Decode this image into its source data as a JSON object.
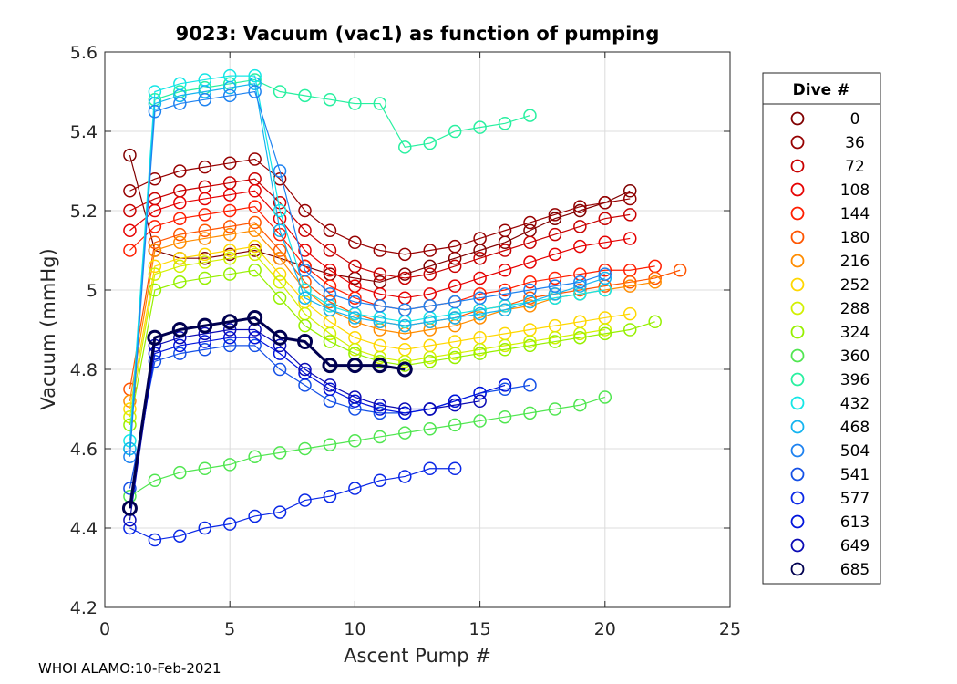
{
  "chart_data": {
    "type": "line",
    "title": "9023: Vacuum (vac1) as function of pumping",
    "xlabel": "Ascent Pump #",
    "ylabel": "Vacuum (mmHg)",
    "xlim": [
      0,
      25
    ],
    "ylim": [
      4.2,
      5.6
    ],
    "xticks": [
      0,
      5,
      10,
      15,
      20,
      25
    ],
    "xtick_labels": [
      "0",
      "5",
      "10",
      "15",
      "20",
      "25"
    ],
    "yticks": [
      4.2,
      4.4,
      4.6,
      4.8,
      5.0,
      5.2,
      5.4,
      5.6
    ],
    "ytick_labels": [
      "4.2",
      "4.4",
      "4.6",
      "4.8",
      "5",
      "5.2",
      "5.4",
      "5.6"
    ],
    "grid": true,
    "legend": {
      "title": "Dive #",
      "placement": "right-outside",
      "entries": [
        {
          "label": "0",
          "color": "#800000"
        },
        {
          "label": "36",
          "color": "#960000"
        },
        {
          "label": "72",
          "color": "#c80000"
        },
        {
          "label": "108",
          "color": "#e60000"
        },
        {
          "label": "144",
          "color": "#ff1e00"
        },
        {
          "label": "180",
          "color": "#ff5500"
        },
        {
          "label": "216",
          "color": "#ff8c00"
        },
        {
          "label": "252",
          "color": "#ffd700"
        },
        {
          "label": "288",
          "color": "#d2f000"
        },
        {
          "label": "324",
          "color": "#96f000"
        },
        {
          "label": "360",
          "color": "#50e650"
        },
        {
          "label": "396",
          "color": "#28f0a0"
        },
        {
          "label": "432",
          "color": "#14e6e6"
        },
        {
          "label": "468",
          "color": "#14b4f0"
        },
        {
          "label": "504",
          "color": "#1e82f0"
        },
        {
          "label": "541",
          "color": "#1450e6"
        },
        {
          "label": "577",
          "color": "#0a28e6"
        },
        {
          "label": "613",
          "color": "#0014dc"
        },
        {
          "label": "649",
          "color": "#0a0ab4"
        },
        {
          "label": "685",
          "color": "#000050"
        }
      ]
    },
    "series": [
      {
        "name": "0",
        "color": "#800000",
        "x": [
          1,
          2,
          3,
          4,
          5,
          6,
          7,
          8,
          9,
          10,
          11,
          12,
          13,
          14,
          15,
          16,
          17,
          18,
          19,
          20,
          21
        ],
        "y": [
          5.34,
          5.1,
          5.08,
          5.08,
          5.09,
          5.1,
          5.08,
          5.06,
          5.04,
          5.03,
          5.02,
          5.04,
          5.06,
          5.08,
          5.1,
          5.12,
          5.15,
          5.18,
          5.2,
          5.22,
          5.25
        ]
      },
      {
        "name": "36",
        "color": "#960000",
        "x": [
          1,
          2,
          3,
          4,
          5,
          6,
          7,
          8,
          9,
          10,
          11,
          12,
          13,
          14,
          15,
          16,
          17,
          18,
          19,
          20,
          21
        ],
        "y": [
          5.25,
          5.28,
          5.3,
          5.31,
          5.32,
          5.33,
          5.28,
          5.2,
          5.15,
          5.12,
          5.1,
          5.09,
          5.1,
          5.11,
          5.13,
          5.15,
          5.17,
          5.19,
          5.21,
          5.22,
          5.23
        ]
      },
      {
        "name": "72",
        "color": "#c80000",
        "x": [
          1,
          2,
          3,
          4,
          5,
          6,
          7,
          8,
          9,
          10,
          11,
          12,
          13,
          14,
          15,
          16,
          17,
          18,
          19,
          20,
          21
        ],
        "y": [
          5.2,
          5.23,
          5.25,
          5.26,
          5.27,
          5.28,
          5.22,
          5.15,
          5.1,
          5.06,
          5.04,
          5.03,
          5.04,
          5.06,
          5.08,
          5.1,
          5.12,
          5.14,
          5.16,
          5.18,
          5.19
        ]
      },
      {
        "name": "108",
        "color": "#e60000",
        "x": [
          1,
          2,
          3,
          4,
          5,
          6,
          7,
          8,
          9,
          10,
          11,
          12,
          13,
          14,
          15,
          16,
          17,
          18,
          19,
          20,
          21
        ],
        "y": [
          5.15,
          5.2,
          5.22,
          5.23,
          5.24,
          5.25,
          5.18,
          5.1,
          5.05,
          5.01,
          4.99,
          4.98,
          4.99,
          5.01,
          5.03,
          5.05,
          5.07,
          5.09,
          5.11,
          5.12,
          5.13
        ]
      },
      {
        "name": "144",
        "color": "#ff1e00",
        "x": [
          1,
          2,
          3,
          4,
          5,
          6,
          7,
          8,
          9,
          10,
          11,
          12,
          13,
          14,
          15,
          16,
          17,
          18,
          19,
          20,
          21,
          22
        ],
        "y": [
          5.1,
          5.16,
          5.18,
          5.19,
          5.2,
          5.21,
          5.14,
          5.06,
          5.01,
          4.98,
          4.96,
          4.95,
          4.96,
          4.97,
          4.99,
          5.0,
          5.02,
          5.03,
          5.04,
          5.05,
          5.05,
          5.06
        ]
      },
      {
        "name": "180",
        "color": "#ff5500",
        "x": [
          1,
          2,
          3,
          4,
          5,
          6,
          7,
          8,
          9,
          10,
          11,
          12,
          13,
          14,
          15,
          16,
          17,
          18,
          19,
          20,
          21,
          22,
          23
        ],
        "y": [
          4.75,
          5.12,
          5.14,
          5.15,
          5.16,
          5.17,
          5.1,
          5.02,
          4.97,
          4.94,
          4.92,
          4.91,
          4.92,
          4.93,
          4.95,
          4.96,
          4.98,
          4.99,
          5.0,
          5.01,
          5.02,
          5.03,
          5.05
        ]
      },
      {
        "name": "216",
        "color": "#ff8c00",
        "x": [
          1,
          2,
          3,
          4,
          5,
          6,
          7,
          8,
          9,
          10,
          11,
          12,
          13,
          14,
          15,
          16,
          17,
          18,
          19,
          20,
          21,
          22
        ],
        "y": [
          4.72,
          5.1,
          5.12,
          5.13,
          5.14,
          5.15,
          5.08,
          5.0,
          4.95,
          4.92,
          4.9,
          4.89,
          4.9,
          4.91,
          4.93,
          4.95,
          4.96,
          4.98,
          4.99,
          5.0,
          5.01,
          5.02
        ]
      },
      {
        "name": "252",
        "color": "#ffd700",
        "x": [
          1,
          2,
          3,
          4,
          5,
          6,
          7,
          8,
          9,
          10,
          11,
          12,
          13,
          14,
          15,
          16,
          17,
          18,
          19,
          20,
          21
        ],
        "y": [
          4.7,
          5.06,
          5.08,
          5.09,
          5.1,
          5.11,
          5.04,
          4.97,
          4.92,
          4.88,
          4.86,
          4.85,
          4.86,
          4.87,
          4.88,
          4.89,
          4.9,
          4.91,
          4.92,
          4.93,
          4.94
        ]
      },
      {
        "name": "288",
        "color": "#d2f000",
        "x": [
          1,
          2,
          3,
          4,
          5,
          6,
          7,
          8,
          9,
          10,
          11,
          12,
          13,
          14,
          15,
          16,
          17,
          18,
          19,
          20
        ],
        "y": [
          4.68,
          5.04,
          5.06,
          5.07,
          5.08,
          5.09,
          5.02,
          4.94,
          4.89,
          4.85,
          4.83,
          4.82,
          4.83,
          4.84,
          4.85,
          4.86,
          4.87,
          4.88,
          4.89,
          4.9
        ]
      },
      {
        "name": "324",
        "color": "#96f000",
        "x": [
          1,
          2,
          3,
          4,
          5,
          6,
          7,
          8,
          9,
          10,
          11,
          12,
          13,
          14,
          15,
          16,
          17,
          18,
          19,
          20,
          21,
          22
        ],
        "y": [
          4.66,
          5.0,
          5.02,
          5.03,
          5.04,
          5.05,
          4.98,
          4.91,
          4.87,
          4.84,
          4.82,
          4.81,
          4.82,
          4.83,
          4.84,
          4.85,
          4.86,
          4.87,
          4.88,
          4.89,
          4.9,
          4.92
        ]
      },
      {
        "name": "360",
        "color": "#50e650",
        "x": [
          1,
          2,
          3,
          4,
          5,
          6,
          7,
          8,
          9,
          10,
          11,
          12,
          13,
          14,
          15,
          16,
          17,
          18,
          19,
          20
        ],
        "y": [
          4.48,
          4.52,
          4.54,
          4.55,
          4.56,
          4.58,
          4.59,
          4.6,
          4.61,
          4.62,
          4.63,
          4.64,
          4.65,
          4.66,
          4.67,
          4.68,
          4.69,
          4.7,
          4.71,
          4.73
        ]
      },
      {
        "name": "396",
        "color": "#28f0a0",
        "x": [
          1,
          2,
          3,
          4,
          5,
          6,
          7,
          8,
          9,
          10,
          11,
          12,
          13,
          14,
          15,
          16,
          17
        ],
        "y": [
          4.6,
          5.48,
          5.5,
          5.51,
          5.52,
          5.53,
          5.5,
          5.49,
          5.48,
          5.47,
          5.47,
          5.36,
          5.37,
          5.4,
          5.41,
          5.42,
          5.44
        ]
      },
      {
        "name": "432",
        "color": "#14e6e6",
        "x": [
          1,
          2,
          3,
          4,
          5,
          6,
          7,
          8,
          9,
          10,
          11,
          12,
          13,
          14,
          15,
          16,
          17,
          18,
          19,
          20
        ],
        "y": [
          4.62,
          5.5,
          5.52,
          5.53,
          5.54,
          5.54,
          5.2,
          5.0,
          4.96,
          4.94,
          4.93,
          4.92,
          4.93,
          4.94,
          4.95,
          4.96,
          4.97,
          4.98,
          4.99,
          5.0
        ]
      },
      {
        "name": "468",
        "color": "#14b4f0",
        "x": [
          1,
          2,
          3,
          4,
          5,
          6,
          7,
          8,
          9,
          10,
          11,
          12,
          13,
          14,
          15,
          16,
          17,
          18,
          19,
          20
        ],
        "y": [
          4.6,
          5.47,
          5.49,
          5.5,
          5.51,
          5.52,
          5.15,
          4.98,
          4.95,
          4.93,
          4.92,
          4.91,
          4.92,
          4.93,
          4.94,
          4.95,
          4.97,
          4.99,
          5.01,
          5.03
        ]
      },
      {
        "name": "504",
        "color": "#1e82f0",
        "x": [
          1,
          2,
          3,
          4,
          5,
          6,
          7,
          8,
          9,
          10,
          11,
          12,
          13,
          14,
          15,
          16,
          17,
          18,
          19,
          20
        ],
        "y": [
          4.58,
          5.45,
          5.47,
          5.48,
          5.49,
          5.5,
          5.3,
          5.05,
          4.99,
          4.97,
          4.96,
          4.95,
          4.96,
          4.97,
          4.98,
          4.99,
          5.0,
          5.01,
          5.02,
          5.04
        ]
      },
      {
        "name": "541",
        "color": "#1450e6",
        "x": [
          1,
          2,
          3,
          4,
          5,
          6,
          7,
          8,
          9,
          10,
          11,
          12,
          13,
          14,
          15,
          16,
          17
        ],
        "y": [
          4.5,
          4.82,
          4.84,
          4.85,
          4.86,
          4.86,
          4.8,
          4.76,
          4.72,
          4.7,
          4.69,
          4.69,
          4.7,
          4.72,
          4.74,
          4.75,
          4.76
        ]
      },
      {
        "name": "577",
        "color": "#0a28e6",
        "x": [
          1,
          2,
          3,
          4,
          5,
          6,
          7,
          8,
          9,
          10,
          11,
          12,
          13,
          14
        ],
        "y": [
          4.4,
          4.37,
          4.38,
          4.4,
          4.41,
          4.43,
          4.44,
          4.47,
          4.48,
          4.5,
          4.52,
          4.53,
          4.55,
          4.55
        ]
      },
      {
        "name": "613",
        "color": "#0014dc",
        "x": [
          1,
          2,
          3,
          4,
          5,
          6,
          7,
          8,
          9,
          10,
          11,
          12,
          13,
          14,
          15,
          16
        ],
        "y": [
          4.45,
          4.84,
          4.86,
          4.87,
          4.88,
          4.88,
          4.84,
          4.79,
          4.75,
          4.72,
          4.7,
          4.69,
          4.7,
          4.72,
          4.74,
          4.76
        ]
      },
      {
        "name": "649",
        "color": "#0a0ab4",
        "x": [
          1,
          2,
          3,
          4,
          5,
          6,
          7,
          8,
          9,
          10,
          11,
          12,
          13,
          14,
          15
        ],
        "y": [
          4.42,
          4.86,
          4.88,
          4.89,
          4.9,
          4.9,
          4.86,
          4.8,
          4.76,
          4.73,
          4.71,
          4.7,
          4.7,
          4.71,
          4.72
        ]
      },
      {
        "name": "685",
        "color": "#000050",
        "x": [
          1,
          2,
          3,
          4,
          5,
          6,
          7,
          8,
          9,
          10,
          11,
          12
        ],
        "y": [
          4.45,
          4.88,
          4.9,
          4.91,
          4.92,
          4.93,
          4.88,
          4.87,
          4.81,
          4.81,
          4.81,
          4.8
        ]
      }
    ]
  },
  "footer": {
    "text": "WHOI ALAMO:10-Feb-2021"
  }
}
